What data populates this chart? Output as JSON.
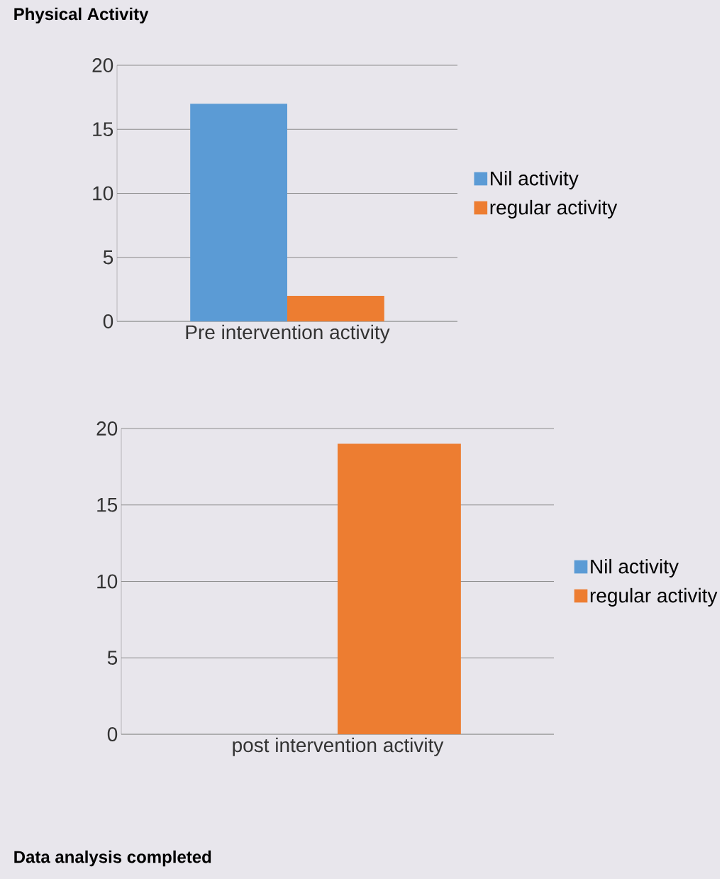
{
  "chart_data": [
    {
      "type": "bar",
      "title": "Physical Activity",
      "categories": [
        "Pre intervention activity"
      ],
      "series": [
        {
          "name": "Nil activity",
          "color": "#5b9bd5",
          "values": [
            17
          ]
        },
        {
          "name": "regular activity",
          "color": "#ed7d31",
          "values": [
            2
          ]
        }
      ],
      "ylim": [
        0,
        20
      ],
      "yticks": [
        0,
        5,
        10,
        15,
        20
      ],
      "grid": "y",
      "legend": "right"
    },
    {
      "type": "bar",
      "categories": [
        "post intervention activity"
      ],
      "series": [
        {
          "name": "Nil activity",
          "color": "#5b9bd5",
          "values": [
            0
          ]
        },
        {
          "name": "regular activity",
          "color": "#ed7d31",
          "values": [
            19
          ]
        }
      ],
      "ylim": [
        0,
        20
      ],
      "yticks": [
        0,
        5,
        10,
        15,
        20
      ],
      "grid": "y",
      "legend": "right",
      "annotations": [
        "Data analysis completed"
      ]
    }
  ]
}
